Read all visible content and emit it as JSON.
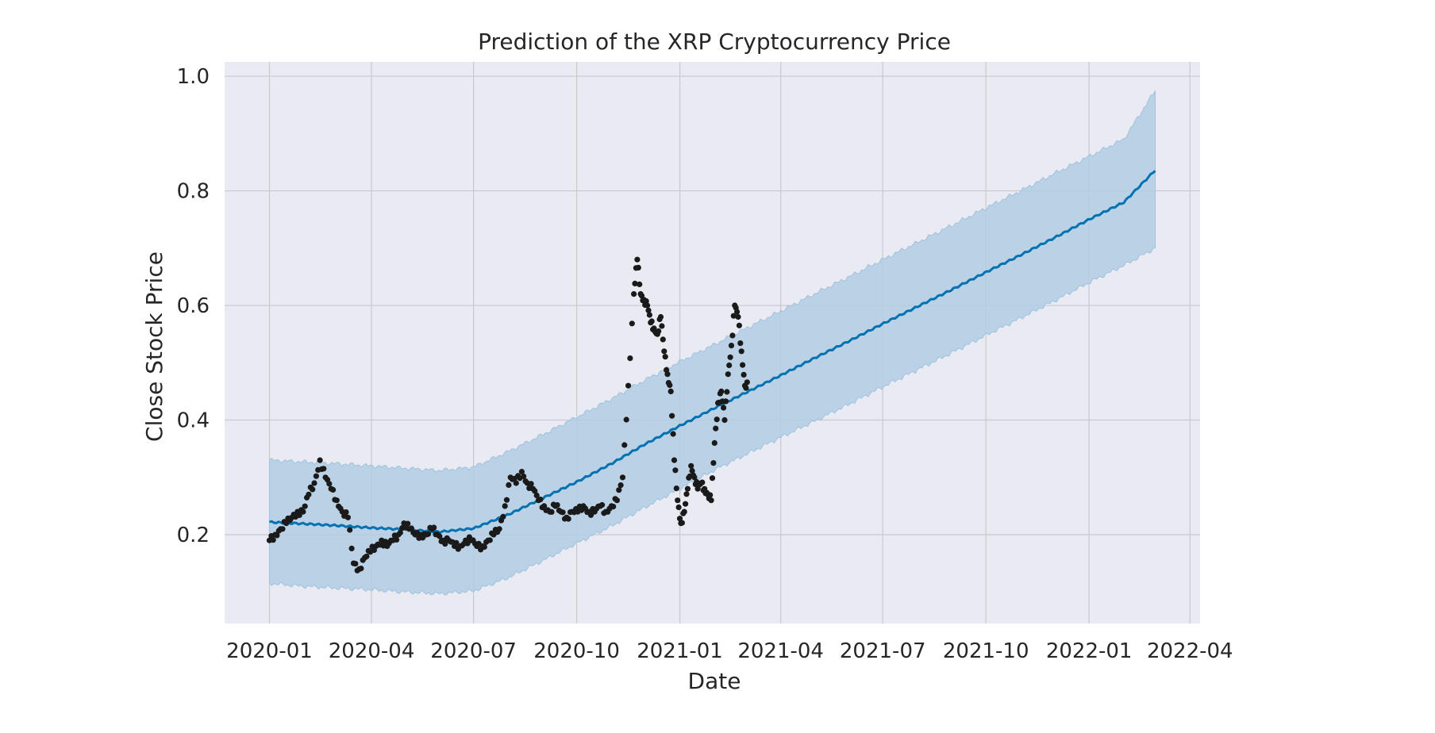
{
  "chart_data": {
    "type": "line",
    "title": "Prediction of the XRP Cryptocurrency Price",
    "xlabel": "Date",
    "ylabel": "Close Stock Price",
    "x_ticks": [
      "2020-01",
      "2020-04",
      "2020-07",
      "2020-10",
      "2021-01",
      "2021-04",
      "2021-07",
      "2021-10",
      "2022-01",
      "2022-04"
    ],
    "y_ticks": [
      0.2,
      0.4,
      0.6,
      0.8,
      1.0
    ],
    "y_tick_labels": [
      "0.2",
      "0.4",
      "0.6",
      "0.8",
      "1.0"
    ],
    "xlim": [
      "2019-11-22",
      "2022-04-10"
    ],
    "ylim": [
      0.045,
      1.025
    ],
    "grid": true,
    "colors": {
      "background": "#eaeaf2",
      "grid": "#c8c8d0",
      "forecast": "#0072b2",
      "band": "#b3cde3",
      "band_edge": "#9ec3e0",
      "observed": "#1a1a1a"
    },
    "series": [
      {
        "kind": "forecast",
        "x": [
          "2020-01-01",
          "2020-02-01",
          "2020-03-01",
          "2020-04-01",
          "2020-05-01",
          "2020-06-01",
          "2020-07-01",
          "2020-08-01",
          "2020-09-01",
          "2020-10-01",
          "2020-11-01",
          "2020-12-01",
          "2021-01-01",
          "2021-02-01",
          "2021-03-01",
          "2021-04-01",
          "2021-05-01",
          "2021-06-01",
          "2021-07-01",
          "2021-08-01",
          "2021-09-01",
          "2021-10-01",
          "2021-11-01",
          "2021-12-01",
          "2022-01-01",
          "2022-02-01",
          "2022-03-01"
        ],
        "y": [
          0.222,
          0.219,
          0.216,
          0.212,
          0.209,
          0.205,
          0.211,
          0.235,
          0.264,
          0.292,
          0.324,
          0.358,
          0.39,
          0.421,
          0.448,
          0.478,
          0.508,
          0.538,
          0.568,
          0.598,
          0.628,
          0.658,
          0.688,
          0.718,
          0.75,
          0.78,
          0.836
        ],
        "lower": [
          0.115,
          0.11,
          0.107,
          0.104,
          0.1,
          0.097,
          0.102,
          0.125,
          0.155,
          0.185,
          0.215,
          0.248,
          0.28,
          0.313,
          0.34,
          0.37,
          0.398,
          0.428,
          0.458,
          0.488,
          0.518,
          0.548,
          0.578,
          0.608,
          0.64,
          0.67,
          0.7
        ],
        "upper": [
          0.33,
          0.327,
          0.324,
          0.32,
          0.316,
          0.312,
          0.318,
          0.345,
          0.375,
          0.405,
          0.437,
          0.47,
          0.502,
          0.532,
          0.56,
          0.59,
          0.62,
          0.65,
          0.68,
          0.71,
          0.74,
          0.77,
          0.8,
          0.83,
          0.86,
          0.89,
          0.975
        ]
      },
      {
        "kind": "observed",
        "x": [
          "2020-01-01",
          "2020-01-06",
          "2020-01-11",
          "2020-01-16",
          "2020-01-21",
          "2020-01-26",
          "2020-01-31",
          "2020-02-05",
          "2020-02-10",
          "2020-02-15",
          "2020-02-20",
          "2020-02-25",
          "2020-03-01",
          "2020-03-06",
          "2020-03-11",
          "2020-03-16",
          "2020-03-21",
          "2020-03-26",
          "2020-03-31",
          "2020-04-05",
          "2020-04-10",
          "2020-04-15",
          "2020-04-20",
          "2020-04-25",
          "2020-04-30",
          "2020-05-05",
          "2020-05-10",
          "2020-05-15",
          "2020-05-20",
          "2020-05-25",
          "2020-05-30",
          "2020-06-04",
          "2020-06-09",
          "2020-06-14",
          "2020-06-19",
          "2020-06-24",
          "2020-06-29",
          "2020-07-04",
          "2020-07-09",
          "2020-07-14",
          "2020-07-19",
          "2020-07-24",
          "2020-07-29",
          "2020-08-03",
          "2020-08-08",
          "2020-08-13",
          "2020-08-18",
          "2020-08-23",
          "2020-08-28",
          "2020-09-02",
          "2020-09-07",
          "2020-09-12",
          "2020-09-17",
          "2020-09-22",
          "2020-09-27",
          "2020-10-02",
          "2020-10-07",
          "2020-10-12",
          "2020-10-17",
          "2020-10-22",
          "2020-10-27",
          "2020-11-01",
          "2020-11-06",
          "2020-11-11",
          "2020-11-16",
          "2020-11-21",
          "2020-11-24",
          "2020-11-27",
          "2020-11-30",
          "2020-12-03",
          "2020-12-06",
          "2020-12-09",
          "2020-12-12",
          "2020-12-15",
          "2020-12-18",
          "2020-12-21",
          "2020-12-24",
          "2020-12-27",
          "2020-12-30",
          "2021-01-02",
          "2021-01-05",
          "2021-01-08",
          "2021-01-11",
          "2021-01-14",
          "2021-01-17",
          "2021-01-20",
          "2021-01-23",
          "2021-01-26",
          "2021-01-29",
          "2021-02-01",
          "2021-02-04",
          "2021-02-07",
          "2021-02-10",
          "2021-02-13",
          "2021-02-16",
          "2021-02-19",
          "2021-02-22",
          "2021-02-25",
          "2021-02-28"
        ],
        "y": [
          0.19,
          0.2,
          0.21,
          0.22,
          0.23,
          0.24,
          0.24,
          0.27,
          0.29,
          0.33,
          0.3,
          0.28,
          0.26,
          0.24,
          0.23,
          0.15,
          0.14,
          0.16,
          0.17,
          0.18,
          0.19,
          0.18,
          0.19,
          0.2,
          0.22,
          0.21,
          0.2,
          0.2,
          0.2,
          0.21,
          0.2,
          0.19,
          0.19,
          0.18,
          0.18,
          0.19,
          0.19,
          0.18,
          0.18,
          0.19,
          0.2,
          0.21,
          0.25,
          0.3,
          0.29,
          0.31,
          0.29,
          0.28,
          0.26,
          0.25,
          0.24,
          0.25,
          0.24,
          0.23,
          0.24,
          0.24,
          0.25,
          0.24,
          0.24,
          0.25,
          0.24,
          0.25,
          0.26,
          0.3,
          0.46,
          0.62,
          0.68,
          0.62,
          0.61,
          0.6,
          0.57,
          0.56,
          0.55,
          0.58,
          0.52,
          0.48,
          0.45,
          0.33,
          0.26,
          0.22,
          0.24,
          0.28,
          0.32,
          0.3,
          0.28,
          0.29,
          0.28,
          0.27,
          0.26,
          0.36,
          0.43,
          0.45,
          0.4,
          0.48,
          0.53,
          0.6,
          0.58,
          0.52,
          0.46
        ]
      }
    ]
  }
}
